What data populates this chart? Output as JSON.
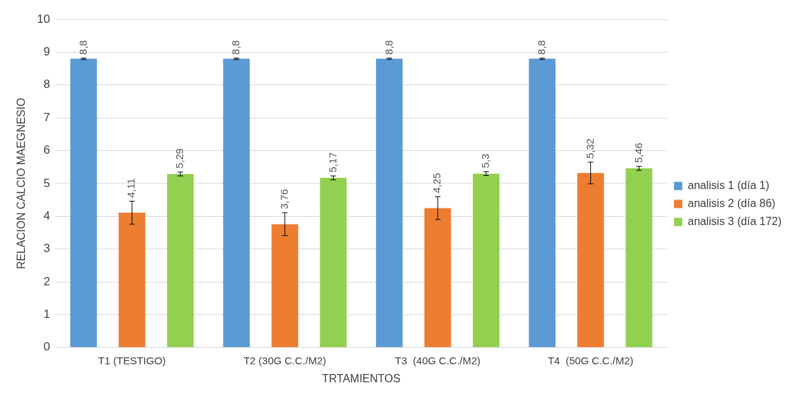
{
  "chart_data": {
    "type": "bar",
    "xlabel": "TRTAMIENTOS",
    "ylabel": "RELACION CALCIO MAEGNESIO",
    "categories": [
      "T1 (TESTIGO)",
      "T2 (30G C.C./M2)",
      "T3  (40G C.C./M2)",
      "T4  (50G C.C./M2)"
    ],
    "series": [
      {
        "name": "analisis 1 (día 1)",
        "color": "#5b9bd5",
        "values": [
          8.8,
          8.8,
          8.8,
          8.8
        ],
        "errors": [
          0.02,
          0.02,
          0.02,
          0.02
        ],
        "value_labels": [
          "8,8",
          "8,8",
          "8,8",
          "8,8"
        ]
      },
      {
        "name": "analisis 2 (día 86)",
        "color": "#ed7d31",
        "values": [
          4.11,
          3.76,
          4.25,
          5.32
        ],
        "errors": [
          0.35,
          0.35,
          0.35,
          0.33
        ],
        "value_labels": [
          "4,11",
          "3,76",
          "4,25",
          "5,32"
        ]
      },
      {
        "name": "analisis 3 (día 172)",
        "color": "#92d050",
        "values": [
          5.29,
          5.17,
          5.3,
          5.46
        ],
        "errors": [
          0.06,
          0.06,
          0.06,
          0.06
        ],
        "value_labels": [
          "5,29",
          "5,17",
          "5,3",
          "5,46"
        ]
      }
    ],
    "ylim": [
      0,
      10
    ],
    "yticks": [
      0,
      1,
      2,
      3,
      4,
      5,
      6,
      7,
      8,
      9,
      10
    ],
    "grid": "y",
    "legend": "right"
  }
}
